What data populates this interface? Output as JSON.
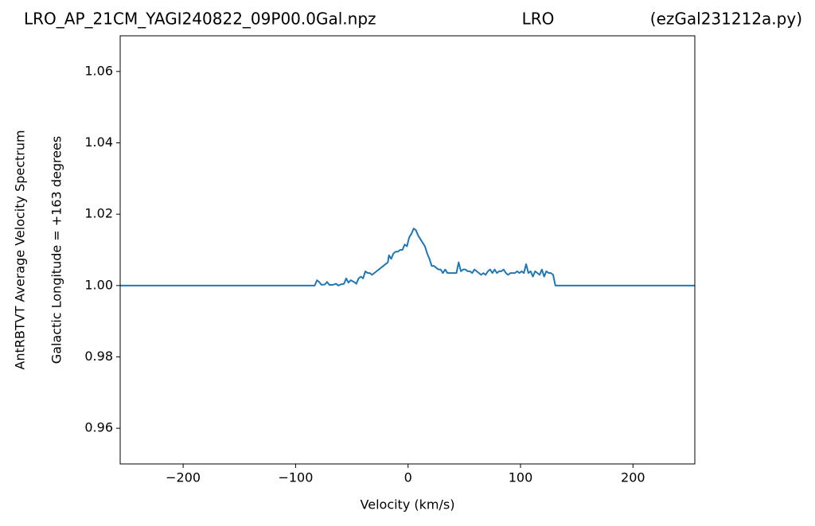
{
  "chart_data": {
    "type": "line",
    "titles": [
      "LRO_AP_21CM_YAGI240822_09P00.0Gal.npz",
      "LRO",
      "(ezGal231212a.py)"
    ],
    "xlabel": "Velocity (km/s)",
    "ylabel": [
      "AntRBTVT Average Velocity Spectrum",
      "Galactic Longitude = +163 degrees"
    ],
    "xlim": [
      -256,
      255
    ],
    "ylim": [
      0.95,
      1.07
    ],
    "xticks": [
      {
        "value": -200,
        "label": "−200"
      },
      {
        "value": -100,
        "label": "−100"
      },
      0,
      100,
      200
    ],
    "yticks": [
      0.96,
      0.98,
      {
        "value": 1,
        "label": "1.00"
      },
      1.02,
      1.04,
      1.06
    ],
    "grid": false,
    "x": [
      -256,
      -83,
      -81,
      -79,
      -77,
      -74,
      -72,
      -70,
      -67,
      -64,
      -62,
      -60,
      -57,
      -55,
      -53,
      -51,
      -48,
      -46,
      -44,
      -42,
      -40,
      -38,
      -36,
      -34,
      -32,
      -30,
      -28,
      -26,
      -24,
      -22,
      -20,
      -18,
      -17,
      -15,
      -13,
      -11,
      -9,
      -7,
      -5,
      -3,
      -1,
      1,
      3,
      5,
      7,
      9,
      11,
      13,
      15,
      17,
      19,
      21,
      23,
      25,
      27,
      29,
      31,
      33,
      35,
      37,
      39,
      41,
      43,
      45,
      47,
      49,
      51,
      53,
      55,
      57,
      59,
      61,
      63,
      65,
      67,
      69,
      71,
      73,
      75,
      77,
      79,
      81,
      83,
      85,
      87,
      89,
      91,
      93,
      95,
      97,
      99,
      101,
      103,
      105,
      107,
      109,
      111,
      113,
      115,
      117,
      119,
      121,
      123,
      125,
      127,
      129,
      131,
      255
    ],
    "series": [
      {
        "color": "#1f77b4",
        "values": [
          1.0,
          1.0,
          1.0015,
          1.001,
          1.0002,
          1.0003,
          1.001,
          1.0002,
          1.0002,
          1.0005,
          1.0,
          1.0003,
          1.0005,
          1.002,
          1.0008,
          1.0015,
          1.001,
          1.0005,
          1.002,
          1.0025,
          1.002,
          1.004,
          1.0035,
          1.0035,
          1.003,
          1.0035,
          1.004,
          1.0045,
          1.005,
          1.0055,
          1.006,
          1.0065,
          1.0085,
          1.0075,
          1.009,
          1.0095,
          1.0095,
          1.01,
          1.01,
          1.0115,
          1.011,
          1.0135,
          1.0145,
          1.016,
          1.0155,
          1.014,
          1.013,
          1.012,
          1.011,
          1.009,
          1.0075,
          1.0055,
          1.0055,
          1.005,
          1.0045,
          1.0045,
          1.0035,
          1.0045,
          1.0035,
          1.0035,
          1.0035,
          1.0035,
          1.0035,
          1.0065,
          1.004,
          1.0045,
          1.0045,
          1.004,
          1.004,
          1.0035,
          1.0045,
          1.004,
          1.0035,
          1.003,
          1.0035,
          1.003,
          1.004,
          1.0045,
          1.0035,
          1.0045,
          1.0035,
          1.004,
          1.004,
          1.0045,
          1.0035,
          1.003,
          1.0035,
          1.0035,
          1.0035,
          1.004,
          1.0035,
          1.004,
          1.0035,
          1.006,
          1.0035,
          1.004,
          1.0025,
          1.004,
          1.0035,
          1.003,
          1.0045,
          1.0025,
          1.004,
          1.0035,
          1.0035,
          1.003,
          1.0,
          1.0
        ]
      }
    ]
  }
}
